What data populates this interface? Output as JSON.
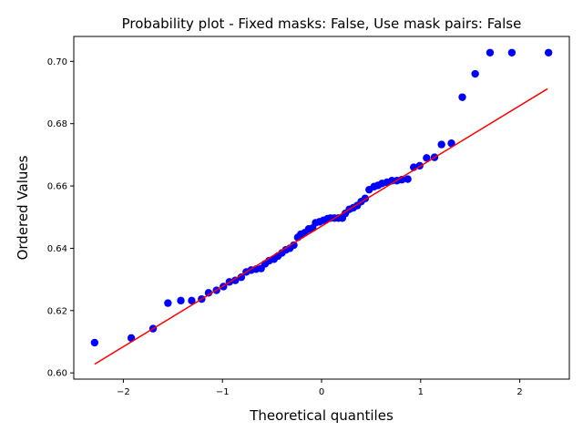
{
  "chart_data": {
    "type": "scatter",
    "title": "Probability plot - Fixed masks: False, Use mask pairs: False",
    "xlabel": "Theoretical quantiles",
    "ylabel": "Ordered Values",
    "xlim": [
      -2.5,
      2.5
    ],
    "ylim": [
      0.598,
      0.708
    ],
    "x_ticks": [
      -2,
      -1,
      0,
      1,
      2
    ],
    "x_tick_labels": [
      "−2",
      "−1",
      "0",
      "1",
      "2"
    ],
    "y_ticks": [
      0.6,
      0.62,
      0.64,
      0.66,
      0.68,
      0.7
    ],
    "y_tick_labels": [
      "0.60",
      "0.62",
      "0.64",
      "0.66",
      "0.68",
      "0.70"
    ],
    "grid": false,
    "legend": false,
    "series": [
      {
        "kind": "points",
        "color": "#0000ff",
        "x": [
          -2.29,
          -1.92,
          -1.7,
          -1.55,
          -1.42,
          -1.31,
          -1.21,
          -1.14,
          -1.06,
          -0.99,
          -0.93,
          -0.87,
          -0.81,
          -0.76,
          -0.71,
          -0.66,
          -0.61,
          -0.57,
          -0.53,
          -0.48,
          -0.44,
          -0.4,
          -0.36,
          -0.32,
          -0.28,
          -0.24,
          -0.21,
          -0.17,
          -0.13,
          -0.09,
          -0.06,
          -0.02,
          0.02,
          0.06,
          0.09,
          0.13,
          0.17,
          0.21,
          0.24,
          0.28,
          0.32,
          0.36,
          0.4,
          0.44,
          0.48,
          0.53,
          0.57,
          0.61,
          0.66,
          0.71,
          0.76,
          0.81,
          0.87,
          0.93,
          0.99,
          1.06,
          1.14,
          1.21,
          1.31,
          1.42,
          1.55,
          1.7,
          1.92,
          2.29
        ],
        "y": [
          0.6097,
          0.6112,
          0.6142,
          0.6224,
          0.6232,
          0.6232,
          0.6237,
          0.6257,
          0.6265,
          0.6277,
          0.6292,
          0.6297,
          0.6307,
          0.6324,
          0.633,
          0.6333,
          0.6335,
          0.635,
          0.636,
          0.6365,
          0.6375,
          0.6385,
          0.6395,
          0.64,
          0.641,
          0.6435,
          0.6445,
          0.645,
          0.6462,
          0.6465,
          0.6482,
          0.6485,
          0.649,
          0.6495,
          0.6497,
          0.6497,
          0.6497,
          0.6497,
          0.6512,
          0.6525,
          0.653,
          0.6537,
          0.655,
          0.656,
          0.6588,
          0.6598,
          0.6602,
          0.6608,
          0.6612,
          0.6617,
          0.6617,
          0.662,
          0.6622,
          0.666,
          0.6665,
          0.669,
          0.6692,
          0.6733,
          0.6737,
          0.6885,
          0.696,
          0.7028,
          0.7028,
          0.7028
        ]
      },
      {
        "kind": "fit-line",
        "color": "#ff0000",
        "x": [
          -2.29,
          2.28
        ],
        "y": [
          0.6028,
          0.6912
        ]
      }
    ]
  }
}
